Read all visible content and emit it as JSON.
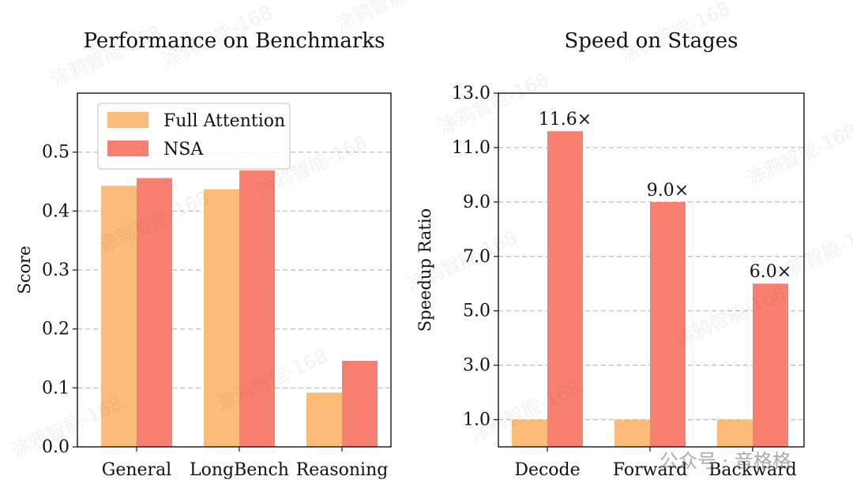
{
  "colors": {
    "full_attention": "#FDBB79",
    "nsa": "#F98071"
  },
  "watermark": {
    "text": "涂鸦智能-168",
    "brand": "公众号 · 音格格"
  },
  "chart_data": [
    {
      "type": "bar",
      "title": "Performance on Benchmarks",
      "xlabel": "",
      "ylabel": "Score",
      "categories": [
        "General",
        "LongBench",
        "Reasoning"
      ],
      "series": [
        {
          "name": "Full Attention",
          "values": [
            0.443,
            0.437,
            0.092
          ]
        },
        {
          "name": "NSA",
          "values": [
            0.456,
            0.469,
            0.146
          ]
        }
      ],
      "ylim": [
        0,
        0.6
      ],
      "yticks": [
        0.0,
        0.1,
        0.2,
        0.3,
        0.4,
        0.5
      ],
      "ytick_labels": [
        "0.0",
        "0.1",
        "0.2",
        "0.3",
        "0.4",
        "0.5"
      ],
      "grid": true,
      "legend": "top-left"
    },
    {
      "type": "bar",
      "title": "Speed on Stages",
      "xlabel": "",
      "ylabel": "Speedup Ratio",
      "categories": [
        "Decode",
        "Forward",
        "Backward"
      ],
      "series": [
        {
          "name": "Full Attention",
          "values": [
            1.0,
            1.0,
            1.0
          ]
        },
        {
          "name": "NSA",
          "values": [
            11.6,
            9.0,
            6.0
          ]
        }
      ],
      "data_labels": [
        "11.6×",
        "9.0×",
        "6.0×"
      ],
      "ylim": [
        0,
        13.0
      ],
      "yticks": [
        1.0,
        3.0,
        5.0,
        7.0,
        9.0,
        11.0,
        13.0
      ],
      "ytick_labels": [
        "1.0",
        "3.0",
        "5.0",
        "7.0",
        "9.0",
        "11.0",
        "13.0"
      ],
      "grid": true,
      "legend": "none"
    }
  ]
}
